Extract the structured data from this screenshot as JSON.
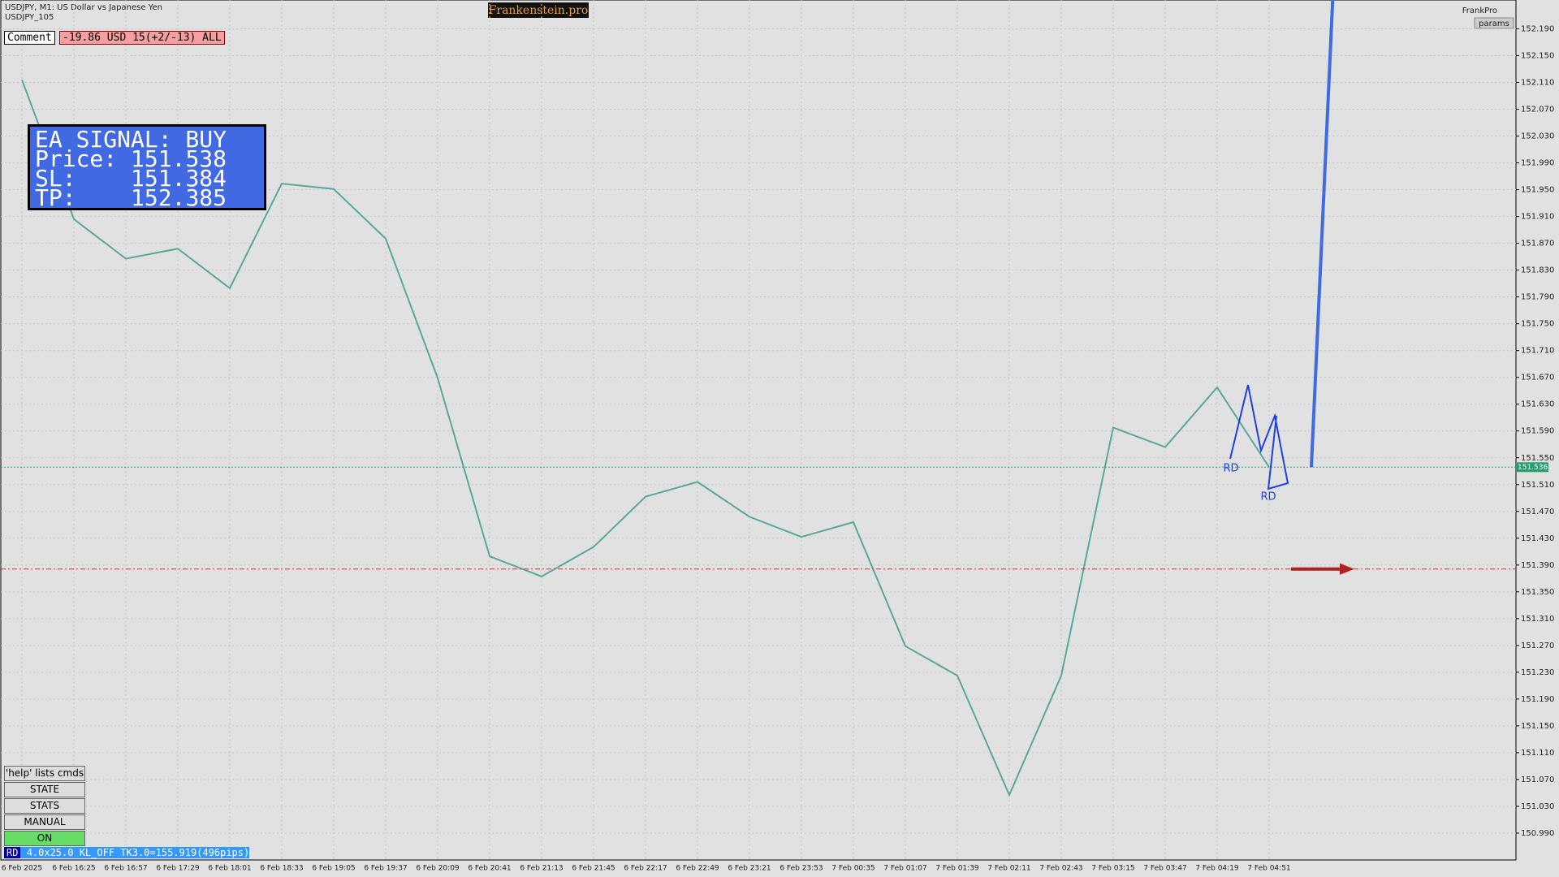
{
  "header": {
    "symbol": "USDJPY, M1:  US Dollar vs Japanese Yen",
    "indicator": "USDJPY_105",
    "brand": "Frankenstein.pro",
    "user": "FrankPro",
    "params": "params"
  },
  "comment": {
    "label": "Comment",
    "text": "-19.86 USD 15(+2/-13) ALL"
  },
  "signal": {
    "title": "EA SIGNAL: BUY",
    "rows": [
      [
        "Price:",
        "151.538"
      ],
      [
        "SL:",
        "151.384"
      ],
      [
        "TP:",
        "152.385"
      ]
    ]
  },
  "buttons": [
    "'help' lists cmds",
    "STATE",
    "STATS",
    "MANUAL",
    "ON"
  ],
  "status": {
    "tag": "RD",
    "text": "4.0x25.0 KL_OFF TK3.0=155.919(496pips)"
  },
  "chart_data": {
    "type": "line",
    "color": "#5aa89a",
    "x": [
      "6 Feb 2025",
      "6 Feb 16:25",
      "6 Feb 16:57",
      "6 Feb 17:29",
      "6 Feb 18:01",
      "6 Feb 18:33",
      "6 Feb 19:05",
      "6 Feb 19:37",
      "6 Feb 20:09",
      "6 Feb 20:41",
      "6 Feb 21:13",
      "6 Feb 21:45",
      "6 Feb 22:17",
      "6 Feb 22:49",
      "6 Feb 23:21",
      "6 Feb 23:53",
      "7 Feb 00:35",
      "7 Feb 01:07",
      "7 Feb 01:39",
      "7 Feb 02:11",
      "7 Feb 02:43",
      "7 Feb 03:15",
      "7 Feb 03:47",
      "7 Feb 04:19",
      "7 Feb 04:51"
    ],
    "values": [
      152.114,
      151.906,
      151.847,
      151.862,
      151.803,
      151.959,
      151.951,
      151.877,
      151.669,
      151.403,
      151.373,
      151.417,
      151.492,
      151.514,
      151.462,
      151.432,
      151.454,
      151.269,
      151.225,
      151.047,
      151.225,
      151.595,
      151.566,
      151.655,
      151.536
    ],
    "ylim": [
      150.95,
      152.233
    ],
    "yticks": [
      {
        "value": 150.99,
        "label": "150.990"
      },
      {
        "value": 151.03,
        "label": "151.030"
      },
      {
        "value": 151.07,
        "label": "151.070"
      },
      {
        "value": 151.11,
        "label": "151.110"
      },
      {
        "value": 151.15,
        "label": "151.150"
      },
      {
        "value": 151.19,
        "label": "151.190"
      },
      {
        "value": 151.23,
        "label": "151.230"
      },
      {
        "value": 151.27,
        "label": "151.270"
      },
      {
        "value": 151.31,
        "label": "151.310"
      },
      {
        "value": 151.35,
        "label": "151.350"
      },
      {
        "value": 151.39,
        "label": "151.390"
      },
      {
        "value": 151.43,
        "label": "151.430"
      },
      {
        "value": 151.47,
        "label": "151.470"
      },
      {
        "value": 151.51,
        "label": "151.510"
      },
      {
        "value": 151.55,
        "label": "151.550"
      },
      {
        "value": 151.59,
        "label": "151.590"
      },
      {
        "value": 151.63,
        "label": "151.630"
      },
      {
        "value": 151.67,
        "label": "151.670"
      },
      {
        "value": 151.71,
        "label": "151.710"
      },
      {
        "value": 151.75,
        "label": "151.750"
      },
      {
        "value": 151.79,
        "label": "151.790"
      },
      {
        "value": 151.83,
        "label": "151.830"
      },
      {
        "value": 151.87,
        "label": "151.870"
      },
      {
        "value": 151.91,
        "label": "151.910"
      },
      {
        "value": 151.95,
        "label": "151.950"
      },
      {
        "value": 151.99,
        "label": "151.990"
      },
      {
        "value": 152.03,
        "label": "152.030"
      },
      {
        "value": 152.07,
        "label": "152.070"
      },
      {
        "value": 152.11,
        "label": "152.110"
      },
      {
        "value": 152.15,
        "label": "152.150"
      },
      {
        "value": 152.19,
        "label": "152.190"
      }
    ],
    "grid": true,
    "price_line": 151.536,
    "sl_line": 151.384,
    "tp": 152.385,
    "pattern_labels": [
      "RD",
      "RD"
    ]
  }
}
